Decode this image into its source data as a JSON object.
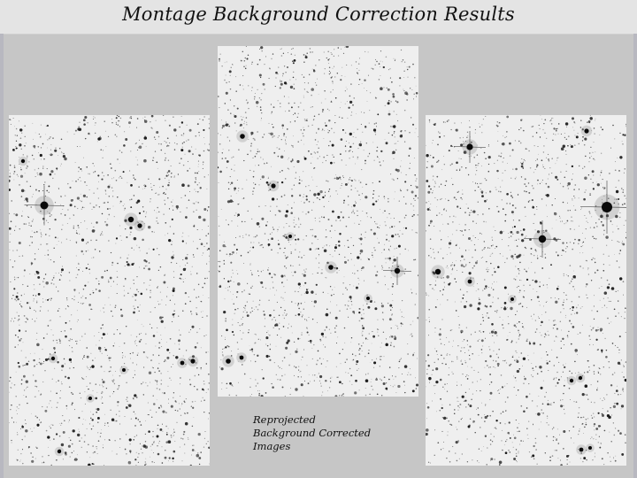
{
  "title": "Montage Background Correction Results",
  "caption": {
    "line1": "Reprojected",
    "line2": "Background Corrected",
    "line3": "Images"
  },
  "panels": [
    {
      "id": "left",
      "seed": 17
    },
    {
      "id": "center",
      "seed": 91
    },
    {
      "id": "right",
      "seed": 53
    }
  ],
  "colors": {
    "sky": "#efefef",
    "star": "#1a1a1a"
  }
}
